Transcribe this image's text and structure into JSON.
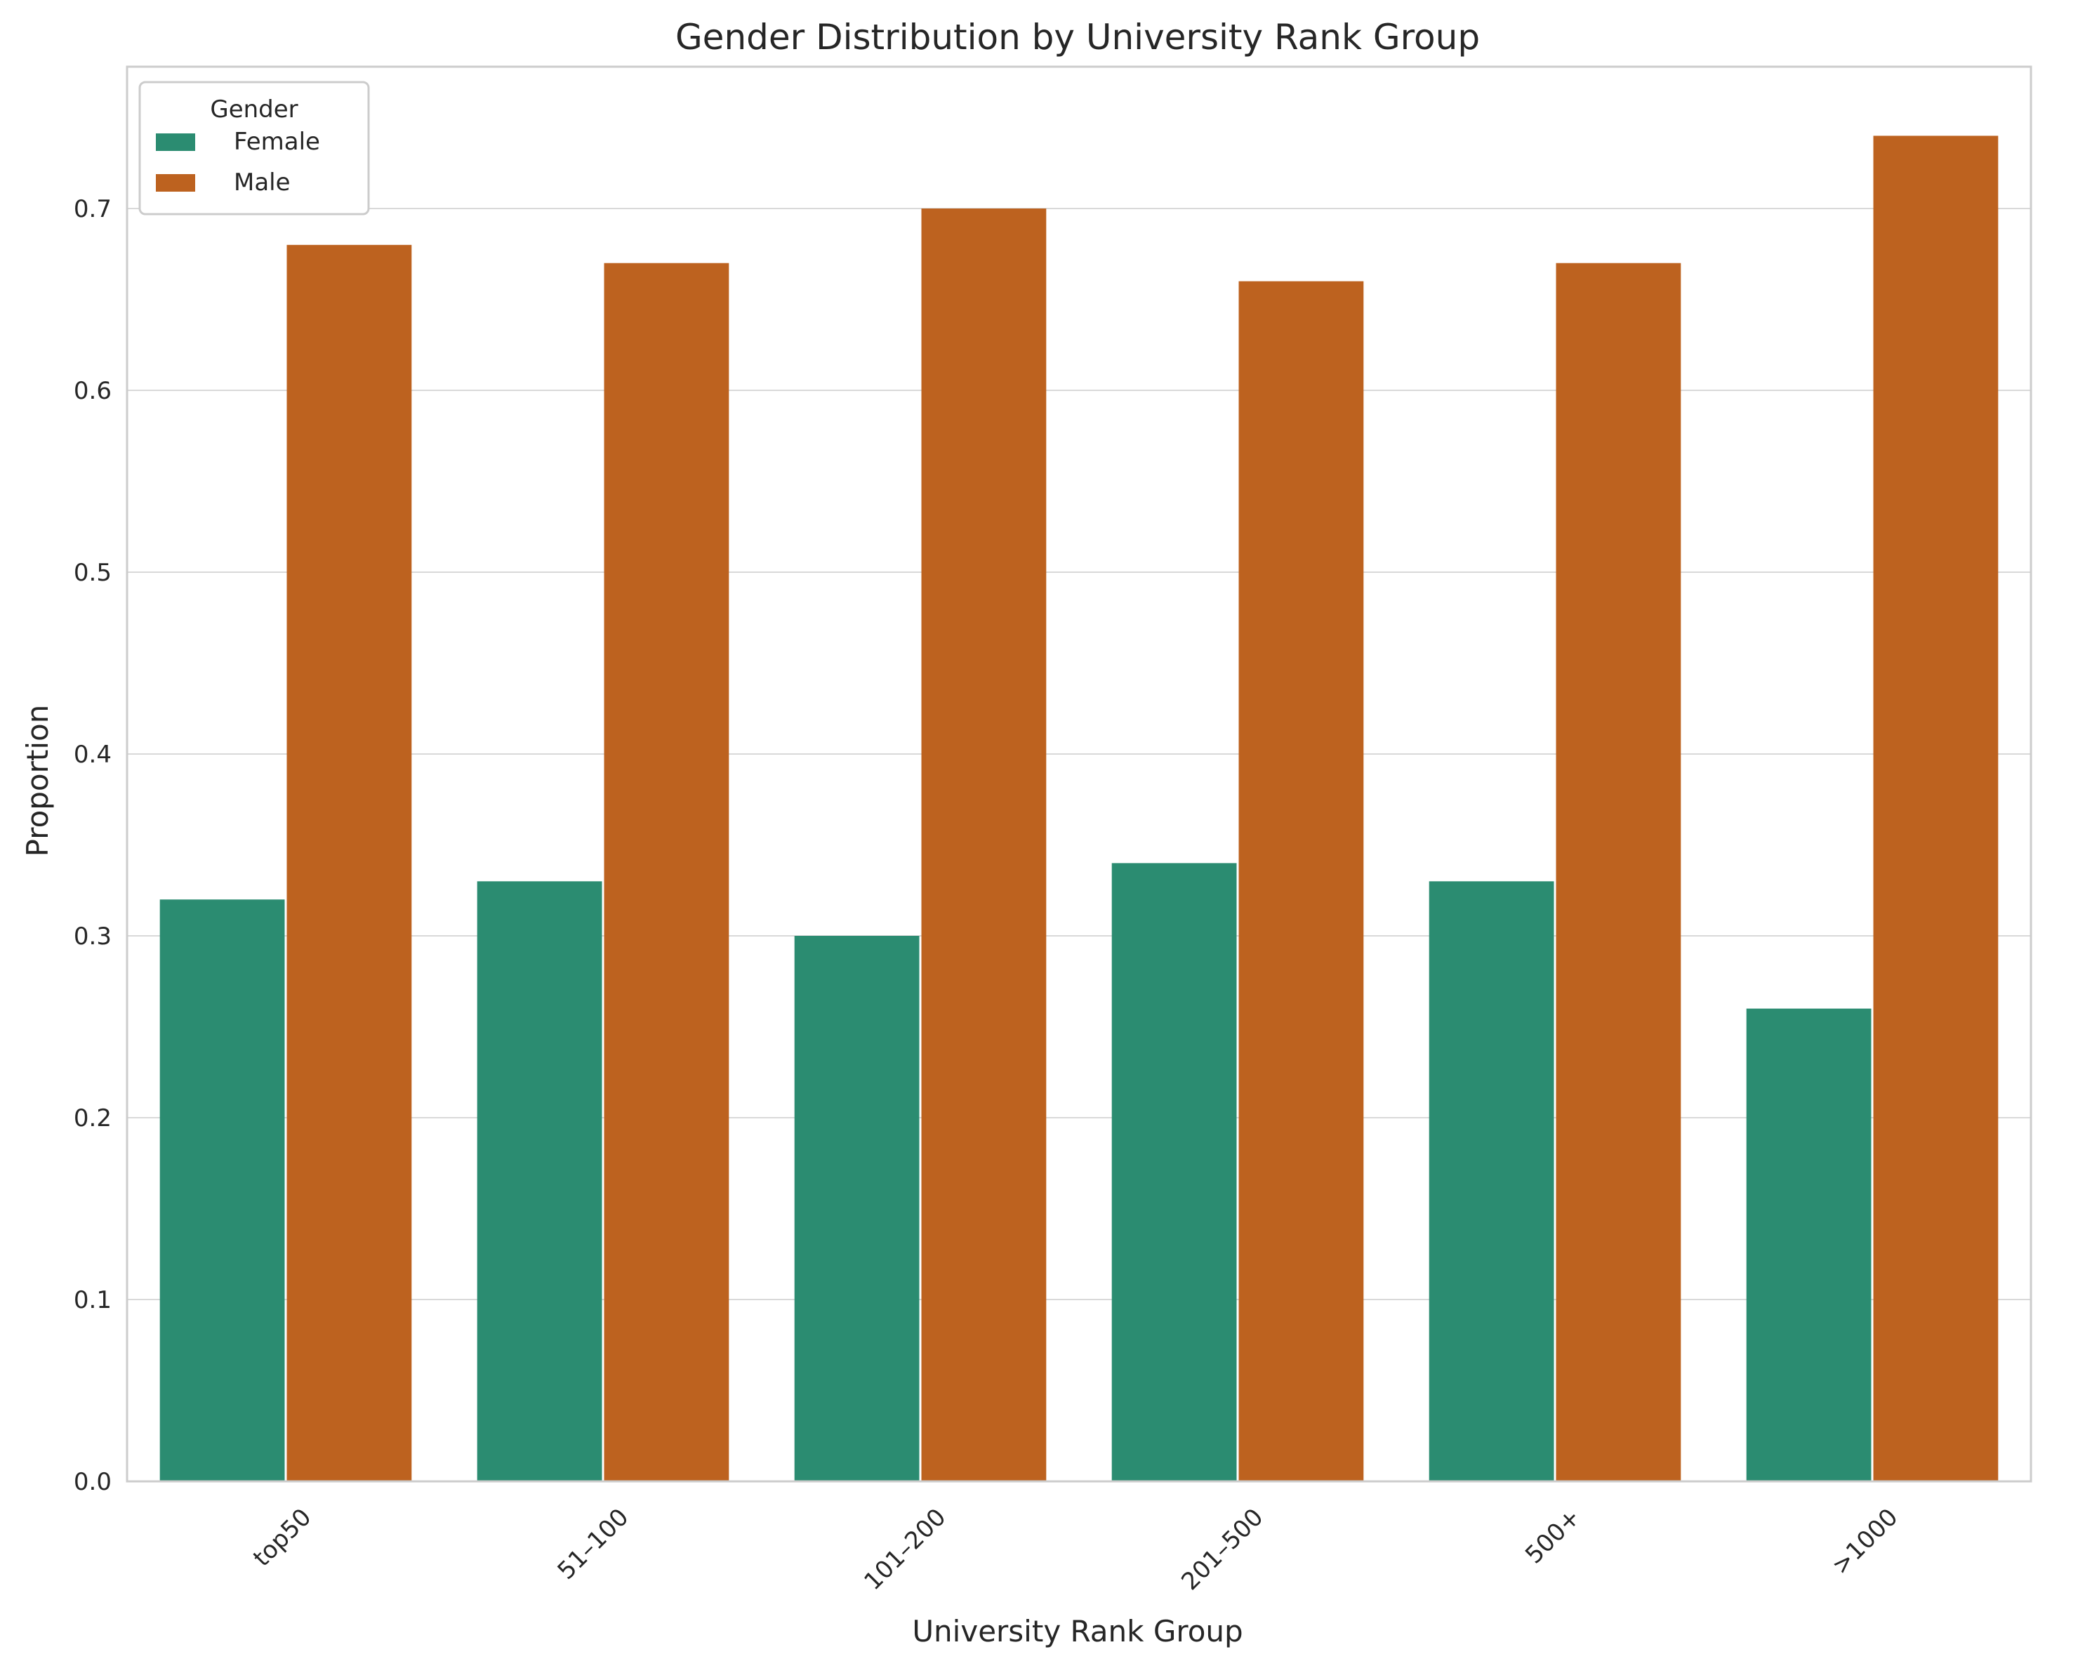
{
  "chart_data": {
    "type": "bar",
    "title": "Gender Distribution by University Rank Group",
    "xlabel": "University Rank Group",
    "ylabel": "Proportion",
    "categories": [
      "top50",
      "51–100",
      "101–200",
      "201–500",
      "500+",
      ">1000"
    ],
    "series": [
      {
        "name": "Female",
        "values": [
          0.32,
          0.33,
          0.3,
          0.34,
          0.33,
          0.26
        ],
        "color": "#2b8c71"
      },
      {
        "name": "Male",
        "values": [
          0.68,
          0.67,
          0.7,
          0.66,
          0.67,
          0.74
        ],
        "color": "#bd621f"
      }
    ],
    "ylim": [
      0,
      0.778
    ],
    "yticks": [
      "0.0",
      "0.1",
      "0.2",
      "0.3",
      "0.4",
      "0.5",
      "0.6",
      "0.7"
    ],
    "legend": {
      "title": "Gender",
      "position": "top-left"
    },
    "grid": "horizontal",
    "x_tick_rotation": "45 degrees"
  }
}
